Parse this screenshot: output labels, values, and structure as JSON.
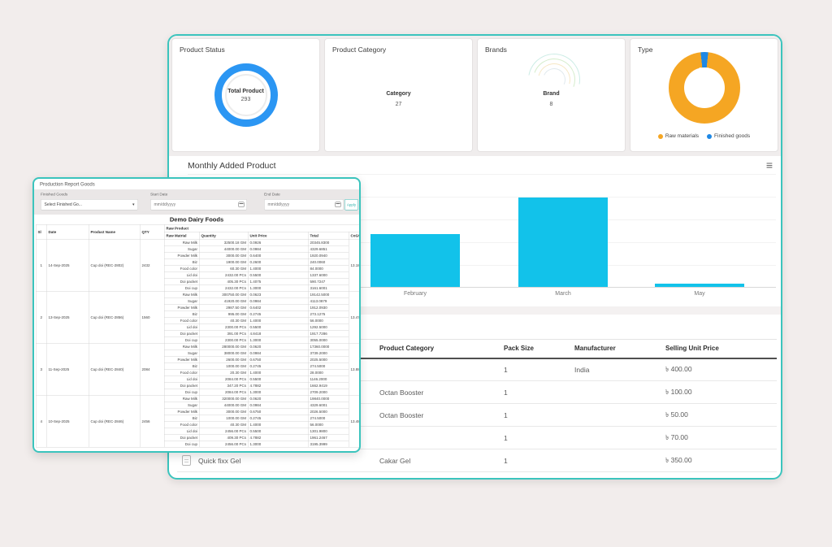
{
  "colors": {
    "window_border": "#3bc4bd",
    "page_background": "#f2edec",
    "bar": "#12c2ea",
    "status_ring": "#2b96f3",
    "raw_materials": "#f5a623",
    "finished_goods": "#1e88e5"
  },
  "dashboard": {
    "cards": [
      {
        "title": "Product Status",
        "center_label": "Total Product",
        "center_value": "293"
      },
      {
        "title": "Product Category",
        "center_label": "Category",
        "center_value": "27"
      },
      {
        "title": "Brands",
        "center_label": "Brand",
        "center_value": "8"
      },
      {
        "title": "Type",
        "slices": [
          {
            "label": "Raw materials",
            "value_pct": 96.6,
            "pct_label": "96.6%",
            "color": "#f5a623"
          },
          {
            "label": "Finished goods",
            "value_pct": 3.4,
            "pct_label": "3.4%",
            "color": "#1e88e5"
          }
        ]
      }
    ],
    "monthly": {
      "title": "Monthly Added Product",
      "chart_data": {
        "type": "bar",
        "categories": [
          "February",
          "March",
          "May"
        ],
        "values": [
          59,
          100,
          4
        ],
        "ylim": [
          0,
          100
        ],
        "grid": true,
        "bar_color": "#12c2ea",
        "title": "Monthly Added Product",
        "xlabel": "",
        "ylabel": ""
      }
    },
    "product_table": {
      "headers": [
        "",
        "Product Category",
        "Pack Size",
        "Manufacturer",
        "Selling Unit Price"
      ],
      "rows": [
        {
          "product": "",
          "category": "",
          "pack_size": "1",
          "manufacturer": "India",
          "price": "৳ 400.00"
        },
        {
          "product": "",
          "category": "Octan Booster",
          "pack_size": "1",
          "manufacturer": "",
          "price": "৳ 100.00"
        },
        {
          "product": "",
          "category": "Octan Booster",
          "pack_size": "1",
          "manufacturer": "",
          "price": "৳ 50.00"
        },
        {
          "product": "",
          "category": "",
          "pack_size": "1",
          "manufacturer": "",
          "price": "৳ 70.00"
        },
        {
          "product": "Quick fixx Gel",
          "category": "Cakar Gel",
          "pack_size": "1",
          "manufacturer": "",
          "price": "৳ 350.00"
        }
      ]
    }
  },
  "report_window": {
    "title": "Production Report Goods",
    "filters": {
      "finished_goods_label": "Finished Goods",
      "finished_goods_value": "Select Finished Go...",
      "start_date_label": "Start Date",
      "start_date_placeholder": "mm/dd/yyyy",
      "end_date_label": "End Date",
      "end_date_placeholder": "mm/dd/yyyy",
      "apply_label": "Apply"
    },
    "report_title": "Demo Dairy Foods",
    "table": {
      "headers": {
        "sl": "Sl",
        "date": "Date",
        "product_name": "Product Name",
        "qty": "QTY",
        "raw_product": "Raw Product",
        "raw_matrial": "Raw Matrial",
        "quantity": "Quantity",
        "unit_price": "Unit Price",
        "total": "Total",
        "cogs": "CoGS"
      },
      "rows": [
        {
          "sl": "1",
          "date": "14-Sep-2025",
          "product": "Cup doi (REC-2802)",
          "qty": "2432",
          "cogs": "13.18",
          "materials": [
            [
              "Raw Milk",
              "32500.18 GM",
              "0.0926",
              "20345.8300"
            ],
            [
              "Sugar",
              "44000.00 GM",
              "0.0984",
              "4329.6851"
            ],
            [
              "Powder Milk",
              "3000.00 GM",
              "0.6400",
              "1920.0940"
            ],
            [
              "Biz",
              "1900.00 GM",
              "0.2600",
              "240.0060"
            ],
            [
              "Food color",
              "60.30 GM",
              "1.4000",
              "84.0000"
            ],
            [
              "Lid doi",
              "2432.00 PCs",
              "0.5500",
              "1337.6000"
            ],
            [
              "Doi packet",
              "405.30 PCs",
              "1.4075",
              "590.7247"
            ],
            [
              "Doi cup",
              "2432.00 PCs",
              "1.3000",
              "3161.6001"
            ]
          ]
        },
        {
          "sl": "2",
          "date": "13-Sep-2025",
          "product": "Cup doi (REC-2856)",
          "qty": "1560",
          "cogs": "13.47",
          "materials": [
            [
              "Raw Milk",
              "300750.00 GM",
              "0.0623",
              "19142.5000"
            ],
            [
              "Sugar",
              "41920.00 GM",
              "0.0984",
              "4113.0879"
            ],
            [
              "Powder Milk",
              "2987.50 GM",
              "0.6402",
              "1912.0930"
            ],
            [
              "Biz",
              "995.00 GM",
              "0.2745",
              "273.1275"
            ],
            [
              "Food color",
              "40.30 GM",
              "1.4000",
              "56.0000"
            ],
            [
              "Lid doi",
              "2300.00 PCs",
              "0.5500",
              "1292.5000"
            ],
            [
              "Doi packet",
              "391.00 PCs",
              "4.8418",
              "1917.7286"
            ],
            [
              "Doi cup",
              "2300.00 PCs",
              "1.3000",
              "3055.0000"
            ]
          ]
        },
        {
          "sl": "3",
          "date": "11-Sep-2025",
          "product": "Cup doi (REC-2840)",
          "qty": "2084",
          "cogs": "13.88",
          "materials": [
            [
              "Raw Milk",
              "280000.00 GM",
              "0.0620",
              "17360.0000"
            ],
            [
              "Sugar",
              "38000.00 GM",
              "0.0984",
              "3739.2000"
            ],
            [
              "Powder Milk",
              "2600.00 GM",
              "0.6750",
              "2025.5000"
            ],
            [
              "Biz",
              "1000.00 GM",
              "0.2745",
              "274.5000"
            ],
            [
              "Food color",
              "20.30 GM",
              "1.4000",
              "28.0000"
            ],
            [
              "Lid doi",
              "2084.00 PCs",
              "0.5500",
              "1146.2000"
            ],
            [
              "Doi packet",
              "347.20 PCs",
              "4.7882",
              "1662.9419"
            ],
            [
              "Doi cup",
              "2084.00 PCs",
              "1.3000",
              "2709.2000"
            ]
          ]
        },
        {
          "sl": "4",
          "date": "10-Sep-2025",
          "product": "Cup doi (REC-2846)",
          "qty": "2456",
          "cogs": "13.48",
          "materials": [
            [
              "Raw Milk",
              "320000.00 GM",
              "0.0620",
              "19840.0000"
            ],
            [
              "Sugar",
              "44000.00 GM",
              "0.0984",
              "4329.6001"
            ],
            [
              "Powder Milk",
              "3000.00 GM",
              "0.6750",
              "2026.5000"
            ],
            [
              "Biz",
              "1000.00 GM",
              "0.2745",
              "274.5000"
            ],
            [
              "Food color",
              "40.30 GM",
              "1.4000",
              "56.0000"
            ],
            [
              "Lid doi",
              "2456.00 PCs",
              "0.5500",
              "1301.9800"
            ],
            [
              "Doi packet",
              "409.30 PCs",
              "4.7882",
              "1961.2467"
            ],
            [
              "Doi cup",
              "2456.00 PCs",
              "1.3000",
              "3195.3999"
            ]
          ]
        }
      ]
    }
  }
}
